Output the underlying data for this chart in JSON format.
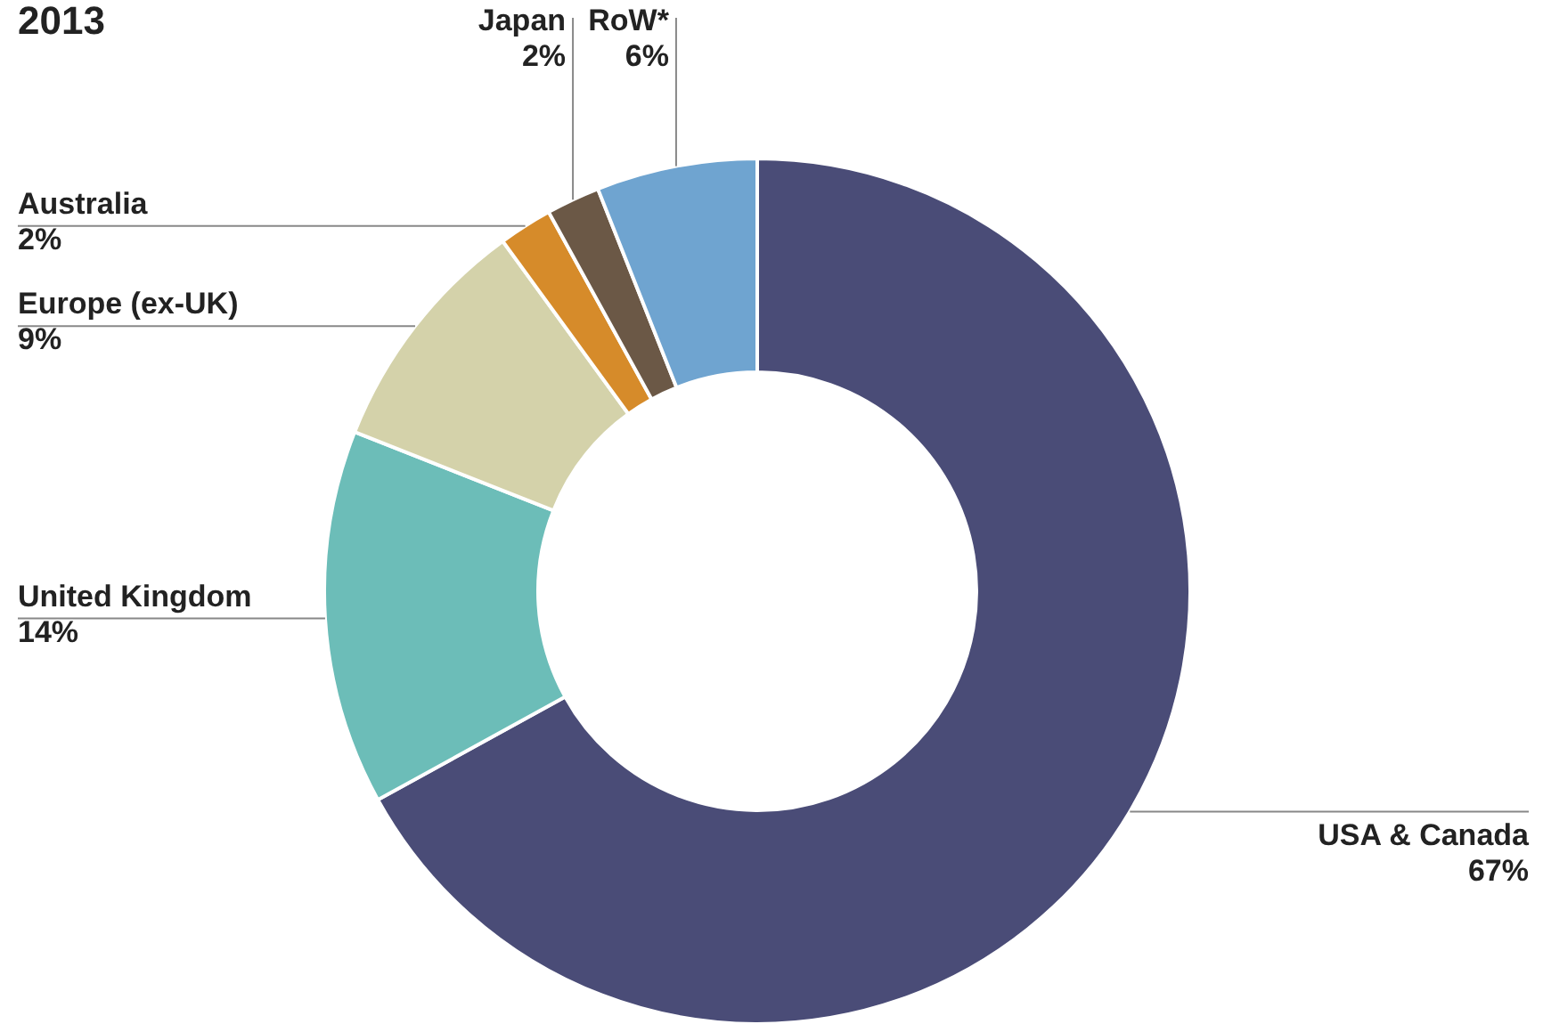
{
  "chart_data": {
    "type": "donut",
    "title": "2013",
    "categories": [
      "USA & Canada",
      "United Kingdom",
      "Europe (ex-UK)",
      "Australia",
      "Japan",
      "RoW*"
    ],
    "values": [
      67,
      14,
      9,
      2,
      2,
      6
    ],
    "value_labels": [
      "67%",
      "14%",
      "9%",
      "2%",
      "2%",
      "6%"
    ],
    "colors": [
      "#4a4c77",
      "#6cbdb8",
      "#d4d2aa",
      "#d68b2a",
      "#6b5846",
      "#6fa4d0"
    ]
  }
}
